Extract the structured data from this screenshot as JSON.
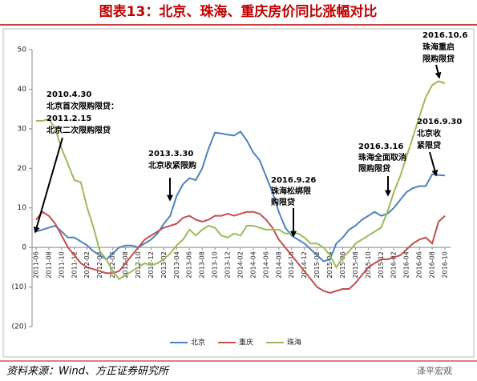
{
  "chart_data": {
    "type": "line",
    "title": "图表13：北京、珠海、重庆房价同比涨幅对比",
    "source": "资料来源：Wind、方正证券研究所",
    "watermark": "泽平宏观",
    "categories": [
      "2011-06",
      null,
      "2011-08",
      null,
      "2011-10",
      null,
      "2011-12",
      null,
      "2012-02",
      null,
      "2012-04",
      null,
      "2012-06",
      null,
      "2012-08",
      null,
      "2012-10",
      null,
      "2012-12",
      null,
      "2013-02",
      null,
      "2013-04",
      null,
      "2013-06",
      null,
      "2013-08",
      null,
      "2013-10",
      null,
      "2013-12",
      null,
      "2014-02",
      null,
      "2014-04",
      null,
      "2014-06",
      null,
      "2014-08",
      null,
      "2014-10",
      null,
      "2014-12",
      null,
      "2015-02",
      null,
      "2015-04",
      null,
      "2015-06",
      null,
      "2015-08",
      null,
      "2015-10",
      null,
      "2015-12",
      null,
      "2016-02",
      null,
      "2016-04",
      null,
      "2016-06",
      null,
      "2016-08",
      null,
      "2016-10"
    ],
    "series": [
      {
        "name": "北京",
        "color": "#4f81bd",
        "values": [
          4,
          4.5,
          5,
          5.5,
          4,
          2.5,
          2.5,
          1.5,
          0.5,
          -1,
          -2,
          -3,
          -1.5,
          0,
          0.5,
          0.5,
          0,
          1,
          2,
          3.5,
          6,
          8,
          13,
          16,
          17.5,
          17,
          20,
          25,
          29,
          28.8,
          28.5,
          28.3,
          29.3,
          27,
          24,
          22,
          18,
          14,
          9,
          5,
          3,
          2,
          1,
          -0.5,
          -2,
          -3.5,
          -3,
          1,
          2.5,
          4.5,
          5.5,
          7,
          8,
          9,
          8,
          8.5,
          10,
          12,
          14,
          15,
          15.5,
          15.5,
          18.5,
          18.3,
          18.2
        ]
      },
      {
        "name": "重庆",
        "color": "#c0504d",
        "values": [
          7,
          9,
          8,
          6,
          3,
          0,
          -2,
          -4,
          -5,
          -5.5,
          -6,
          -6.5,
          -6.5,
          -6,
          -4,
          -2,
          0,
          2,
          3,
          4,
          5,
          5.5,
          6,
          7.5,
          8,
          7,
          6.5,
          7,
          8,
          8,
          8.5,
          8,
          8.5,
          9,
          9,
          8.5,
          7,
          5,
          2,
          0,
          -2,
          -4,
          -6,
          -8,
          -10,
          -11,
          -11.5,
          -11,
          -10.5,
          -10.5,
          -9,
          -7,
          -5,
          -4,
          -3,
          -3,
          -2.5,
          -2,
          -0.5,
          1,
          2,
          2.5,
          1,
          6.5,
          8
        ]
      },
      {
        "name": "珠海",
        "color": "#9bbb59",
        "values": [
          32,
          32,
          32.5,
          30,
          25,
          21,
          17,
          16.5,
          10,
          5,
          -1,
          -3,
          -6,
          -8,
          -7,
          -6,
          -5,
          -4,
          -4.5,
          -4,
          -3,
          -1.5,
          0.5,
          2,
          4.5,
          3,
          4.5,
          5.5,
          5,
          3,
          2.5,
          3.5,
          3,
          5.5,
          5.5,
          5,
          4.5,
          4.5,
          4.5,
          3.5,
          3.5,
          3.5,
          2.5,
          1,
          1,
          0,
          -2,
          -5,
          -2.5,
          -1,
          1,
          2,
          3,
          4,
          5,
          9,
          14,
          18,
          23,
          28,
          33,
          38,
          41,
          42,
          41.5
        ]
      }
    ],
    "ylim": [
      -20,
      50
    ],
    "yticks": [
      {
        "value": -20,
        "label": "(20)"
      },
      {
        "value": -10,
        "label": "(10)"
      },
      0,
      10,
      20,
      30,
      40,
      50
    ],
    "grid": false,
    "legend": "bottom",
    "annotations": [
      {
        "lines": [
          "2010.4.30",
          "北京首次限购限贷：",
          "2011.2.15",
          "北京二次限购限贷"
        ]
      },
      {
        "lines": [
          "2013.3.30",
          "北京收紧限购"
        ]
      },
      {
        "lines": [
          "2016.9.26",
          "珠海松绑限",
          "购限贷"
        ]
      },
      {
        "lines": [
          "2016.3.16",
          "珠海全面取消",
          "限购限贷"
        ]
      },
      {
        "lines": [
          "2016.9.30",
          "北京收",
          "紧限贷"
        ]
      },
      {
        "lines": [
          "2016.10.6",
          "珠海重启",
          "限购限贷"
        ]
      }
    ]
  }
}
